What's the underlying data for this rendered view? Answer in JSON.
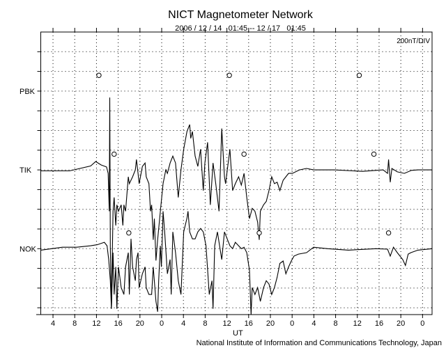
{
  "chart_data": {
    "type": "line",
    "title": "NICT Magnetometer Network",
    "subtitle": "2006 / 12 / 14   01:45 -- 12 / 17   01:45",
    "scale_label": "200nT/DIV",
    "xlabel": "UT",
    "footer": "National Institute of Information and Communications Technology, Japan",
    "x_units": "hours since 2006-12-14 01:45 UT",
    "xlim": [
      0,
      72
    ],
    "nT_per_div": 200,
    "x_tick_labels": [
      "4",
      "8",
      "12",
      "16",
      "20",
      "0",
      "4",
      "8",
      "12",
      "16",
      "20",
      "0",
      "4",
      "8",
      "12",
      "16",
      "20",
      "0"
    ],
    "first_tick_hour": 2.25,
    "tick_step_hours": 4,
    "grid": true,
    "stations": [
      {
        "name": "PBK",
        "div_from_top": 3,
        "markers": [
          10.7,
          34.7,
          58.6
        ],
        "points": []
      },
      {
        "name": "TIK",
        "div_from_top": 7,
        "markers": [
          13.5,
          37.4,
          61.3
        ],
        "points": [
          [
            0,
            -10
          ],
          [
            5.3,
            -10
          ],
          [
            9.2,
            40
          ],
          [
            10.1,
            85
          ],
          [
            11.1,
            50
          ],
          [
            12.1,
            30
          ],
          [
            12.4,
            -35
          ],
          [
            12.6,
            -420
          ],
          [
            12.7,
            735
          ],
          [
            12.8,
            -780
          ],
          [
            13.0,
            -1410
          ],
          [
            13.3,
            -420
          ],
          [
            13.5,
            -280
          ],
          [
            13.8,
            -565
          ],
          [
            14.0,
            -355
          ],
          [
            14.3,
            -420
          ],
          [
            14.8,
            -355
          ],
          [
            15.1,
            -565
          ],
          [
            15.3,
            -355
          ],
          [
            15.6,
            -420
          ],
          [
            16.1,
            -70
          ],
          [
            16.3,
            -140
          ],
          [
            16.9,
            -70
          ],
          [
            17.4,
            0
          ],
          [
            17.6,
            105
          ],
          [
            17.9,
            -35
          ],
          [
            18.1,
            -140
          ],
          [
            18.7,
            35
          ],
          [
            19.2,
            70
          ],
          [
            19.4,
            -70
          ],
          [
            19.9,
            -140
          ],
          [
            20.2,
            -420
          ],
          [
            20.4,
            -355
          ],
          [
            20.7,
            -710
          ],
          [
            20.9,
            -495
          ],
          [
            21.2,
            -920
          ],
          [
            21.5,
            -710
          ],
          [
            22.0,
            -420
          ],
          [
            22.5,
            -140
          ],
          [
            23.0,
            0
          ],
          [
            23.3,
            -35
          ],
          [
            23.8,
            70
          ],
          [
            24.3,
            140
          ],
          [
            24.8,
            70
          ],
          [
            25.3,
            -280
          ],
          [
            25.8,
            0
          ],
          [
            26.3,
            210
          ],
          [
            26.9,
            390
          ],
          [
            27.4,
            460
          ],
          [
            27.6,
            320
          ],
          [
            27.9,
            390
          ],
          [
            28.4,
            140
          ],
          [
            28.9,
            35
          ],
          [
            29.4,
            210
          ],
          [
            29.9,
            -210
          ],
          [
            30.2,
            70
          ],
          [
            30.7,
            280
          ],
          [
            31.2,
            -355
          ],
          [
            31.7,
            70
          ],
          [
            32.2,
            -140
          ],
          [
            32.8,
            -420
          ],
          [
            33.3,
            420
          ],
          [
            33.8,
            -70
          ],
          [
            34.0,
            -140
          ],
          [
            34.8,
            210
          ],
          [
            35.3,
            -210
          ],
          [
            35.8,
            -140
          ],
          [
            36.4,
            -70
          ],
          [
            36.9,
            -155
          ],
          [
            37.4,
            -35
          ],
          [
            37.9,
            -280
          ],
          [
            38.4,
            -495
          ],
          [
            38.9,
            -390
          ],
          [
            39.4,
            -420
          ],
          [
            39.9,
            -530
          ],
          [
            40.2,
            -710
          ],
          [
            40.4,
            -420
          ],
          [
            41.0,
            -355
          ],
          [
            41.5,
            -320
          ],
          [
            42.0,
            -210
          ],
          [
            42.5,
            -70
          ],
          [
            43.0,
            -140
          ],
          [
            43.5,
            -125
          ],
          [
            44.0,
            -210
          ],
          [
            44.6,
            -105
          ],
          [
            45.1,
            -70
          ],
          [
            45.6,
            -35
          ],
          [
            46.3,
            -35
          ],
          [
            47.6,
            0
          ],
          [
            48.9,
            15
          ],
          [
            50.2,
            0
          ],
          [
            54.0,
            0
          ],
          [
            59.2,
            -15
          ],
          [
            63.0,
            0
          ],
          [
            63.8,
            -35
          ],
          [
            64.0,
            105
          ],
          [
            64.3,
            -125
          ],
          [
            64.6,
            15
          ],
          [
            65.6,
            -20
          ],
          [
            66.9,
            -35
          ],
          [
            68.2,
            -5
          ],
          [
            69.4,
            0
          ],
          [
            72.0,
            0
          ]
        ]
      },
      {
        "name": "NOK",
        "div_from_top": 11,
        "markers": [
          16.2,
          40.2,
          64.0
        ],
        "points": [
          [
            0,
            -15
          ],
          [
            4.0,
            15
          ],
          [
            6.6,
            15
          ],
          [
            9.2,
            30
          ],
          [
            10.4,
            40
          ],
          [
            11.7,
            65
          ],
          [
            12.2,
            30
          ],
          [
            12.5,
            -110
          ],
          [
            12.8,
            -325
          ],
          [
            13.0,
            -610
          ],
          [
            13.3,
            -40
          ],
          [
            13.5,
            -465
          ],
          [
            13.8,
            -185
          ],
          [
            14.0,
            -610
          ],
          [
            14.3,
            -185
          ],
          [
            14.8,
            -395
          ],
          [
            15.3,
            -465
          ],
          [
            15.6,
            -185
          ],
          [
            16.1,
            -40
          ],
          [
            16.3,
            -465
          ],
          [
            16.6,
            100
          ],
          [
            16.9,
            -185
          ],
          [
            17.4,
            -325
          ],
          [
            17.6,
            -110
          ],
          [
            17.9,
            -40
          ],
          [
            18.1,
            -395
          ],
          [
            18.7,
            -255
          ],
          [
            19.2,
            -185
          ],
          [
            19.4,
            -395
          ],
          [
            19.9,
            -465
          ],
          [
            20.4,
            -465
          ],
          [
            20.7,
            -185
          ],
          [
            21.2,
            -535
          ],
          [
            21.5,
            -640
          ],
          [
            21.7,
            -325
          ],
          [
            22.0,
            30
          ],
          [
            22.2,
            -185
          ],
          [
            22.5,
            380
          ],
          [
            22.8,
            170
          ],
          [
            23.3,
            -255
          ],
          [
            23.8,
            -110
          ],
          [
            24.0,
            -465
          ],
          [
            24.3,
            170
          ],
          [
            24.8,
            -40
          ],
          [
            25.3,
            -325
          ],
          [
            25.8,
            -465
          ],
          [
            26.3,
            170
          ],
          [
            26.9,
            310
          ],
          [
            27.1,
            380
          ],
          [
            27.4,
            170
          ],
          [
            27.9,
            100
          ],
          [
            28.4,
            100
          ],
          [
            28.9,
            170
          ],
          [
            29.4,
            205
          ],
          [
            29.9,
            170
          ],
          [
            30.4,
            30
          ],
          [
            31.0,
            -465
          ],
          [
            31.5,
            -325
          ],
          [
            31.7,
            -610
          ],
          [
            32.0,
            30
          ],
          [
            32.5,
            170
          ],
          [
            33.3,
            -110
          ],
          [
            33.8,
            170
          ],
          [
            34.3,
            100
          ],
          [
            34.8,
            30
          ],
          [
            35.3,
            0
          ],
          [
            35.8,
            65
          ],
          [
            36.4,
            30
          ],
          [
            36.9,
            0
          ],
          [
            37.4,
            15
          ],
          [
            37.9,
            -40
          ],
          [
            38.4,
            -220
          ],
          [
            38.7,
            -680
          ],
          [
            38.9,
            -395
          ],
          [
            39.4,
            -465
          ],
          [
            39.9,
            -395
          ],
          [
            40.4,
            -535
          ],
          [
            41.0,
            -395
          ],
          [
            41.5,
            -325
          ],
          [
            42.0,
            -360
          ],
          [
            42.5,
            -465
          ],
          [
            43.0,
            -395
          ],
          [
            43.5,
            -290
          ],
          [
            44.0,
            -150
          ],
          [
            44.6,
            -125
          ],
          [
            45.1,
            -255
          ],
          [
            45.6,
            -185
          ],
          [
            46.1,
            -125
          ],
          [
            46.6,
            -75
          ],
          [
            47.4,
            -55
          ],
          [
            48.9,
            -40
          ],
          [
            50.2,
            15
          ],
          [
            52.8,
            0
          ],
          [
            56.6,
            -15
          ],
          [
            61.7,
            0
          ],
          [
            63.8,
            -5
          ],
          [
            64.3,
            -75
          ],
          [
            64.9,
            15
          ],
          [
            65.6,
            -40
          ],
          [
            66.6,
            -110
          ],
          [
            67.1,
            -170
          ],
          [
            67.6,
            -55
          ],
          [
            68.1,
            -40
          ],
          [
            69.4,
            -15
          ],
          [
            72.0,
            0
          ]
        ]
      }
    ]
  }
}
